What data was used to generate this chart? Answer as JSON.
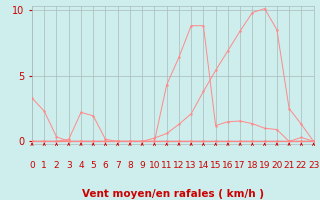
{
  "bg_color": "#ceeeed",
  "grid_color": "#aabbbb",
  "line_color": "#ff8888",
  "xlim": [
    0,
    23
  ],
  "ylim": [
    -0.2,
    10.3
  ],
  "yticks": [
    0,
    5,
    10
  ],
  "xticks": [
    0,
    1,
    2,
    3,
    4,
    5,
    6,
    7,
    8,
    9,
    10,
    11,
    12,
    13,
    14,
    15,
    16,
    17,
    18,
    19,
    20,
    21,
    22,
    23
  ],
  "xlabel": "Vent moyen/en rafales ( km/h )",
  "xlabel_color": "#cc0000",
  "tick_color": "#cc0000",
  "label_fontsize": 6.5,
  "ytick_fontsize": 7,
  "curve1_x": [
    0,
    1,
    2,
    3,
    4,
    5,
    6,
    7,
    8,
    9,
    10,
    11,
    12,
    13,
    14,
    15,
    16,
    17,
    18,
    19,
    20,
    21,
    22,
    23
  ],
  "curve1_y": [
    3.3,
    2.3,
    0.35,
    0.0,
    0.0,
    0.0,
    0.0,
    0.0,
    0.0,
    0.0,
    0.0,
    0.0,
    0.0,
    0.0,
    0.0,
    0.0,
    0.0,
    0.0,
    0.0,
    0.0,
    0.0,
    0.0,
    0.0,
    0.0
  ],
  "curve2_x": [
    0,
    1,
    2,
    3,
    4,
    5,
    6,
    7,
    8,
    9,
    10,
    11,
    12,
    13,
    14,
    15,
    16,
    17,
    18,
    19,
    20,
    21,
    22,
    23
  ],
  "curve2_y": [
    0.0,
    0.0,
    0.0,
    0.15,
    2.2,
    1.95,
    0.15,
    0.0,
    0.0,
    0.0,
    0.0,
    0.0,
    0.0,
    0.0,
    0.0,
    0.0,
    0.0,
    0.0,
    0.0,
    0.0,
    0.0,
    0.0,
    0.0,
    0.0
  ],
  "curve3_x": [
    0,
    1,
    2,
    3,
    4,
    5,
    6,
    7,
    8,
    9,
    10,
    11,
    12,
    13,
    14,
    15,
    16,
    17,
    18,
    19,
    20,
    21,
    22,
    23
  ],
  "curve3_y": [
    0.0,
    0.0,
    0.0,
    0.0,
    0.0,
    0.0,
    0.0,
    0.0,
    0.0,
    0.0,
    0.0,
    4.3,
    6.4,
    8.8,
    8.8,
    1.2,
    1.5,
    1.55,
    1.35,
    1.0,
    0.9,
    0.0,
    0.3,
    0.0
  ],
  "curve4_x": [
    0,
    1,
    2,
    3,
    4,
    5,
    6,
    7,
    8,
    9,
    10,
    11,
    12,
    13,
    14,
    15,
    16,
    17,
    18,
    19,
    20,
    21,
    22,
    23
  ],
  "curve4_y": [
    0.0,
    0.0,
    0.0,
    0.0,
    0.0,
    0.0,
    0.0,
    0.0,
    0.0,
    0.0,
    0.25,
    0.6,
    1.3,
    2.1,
    3.8,
    5.4,
    6.9,
    8.4,
    9.8,
    10.1,
    8.5,
    2.5,
    1.3,
    0.0
  ],
  "lw": 0.7,
  "ms": 2.0
}
